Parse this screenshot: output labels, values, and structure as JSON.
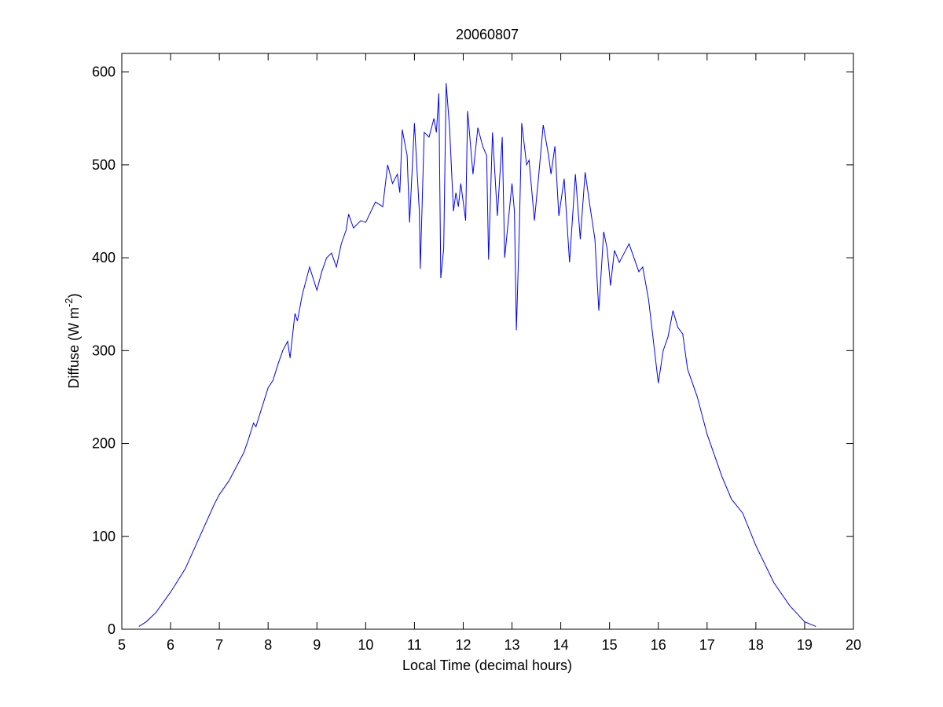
{
  "chart_data": {
    "type": "line",
    "title": "20060807",
    "xlabel": "Local Time (decimal hours)",
    "ylabel": {
      "text": "Diffuse (W m",
      "superscript": "-2",
      "suffix": ")"
    },
    "xlim": [
      5,
      20
    ],
    "xticks": [
      5,
      6,
      7,
      8,
      9,
      10,
      11,
      12,
      13,
      14,
      15,
      16,
      17,
      18,
      19,
      20
    ],
    "ylim": [
      0,
      620
    ],
    "yticks": [
      0,
      100,
      200,
      300,
      400,
      500,
      600
    ],
    "grid": false,
    "series": [
      {
        "name": "Diffuse",
        "color": "#0000ff",
        "x": [
          5.35,
          5.5,
          5.7,
          6.0,
          6.3,
          6.6,
          6.9,
          7.0,
          7.2,
          7.5,
          7.6,
          7.7,
          7.75,
          7.85,
          8.0,
          8.1,
          8.2,
          8.3,
          8.4,
          8.45,
          8.55,
          8.6,
          8.7,
          8.85,
          9.0,
          9.1,
          9.2,
          9.3,
          9.4,
          9.5,
          9.6,
          9.65,
          9.75,
          9.9,
          10.0,
          10.2,
          10.35,
          10.45,
          10.55,
          10.65,
          10.7,
          10.75,
          10.85,
          10.9,
          11.0,
          11.1,
          11.12,
          11.2,
          11.3,
          11.4,
          11.45,
          11.5,
          11.54,
          11.6,
          11.65,
          11.72,
          11.8,
          11.85,
          11.9,
          11.95,
          12.05,
          12.09,
          12.2,
          12.3,
          12.4,
          12.48,
          12.52,
          12.6,
          12.7,
          12.8,
          12.85,
          13.0,
          13.05,
          13.09,
          13.15,
          13.2,
          13.3,
          13.35,
          13.46,
          13.55,
          13.64,
          13.75,
          13.8,
          13.88,
          13.96,
          14.07,
          14.18,
          14.3,
          14.4,
          14.5,
          14.6,
          14.7,
          14.78,
          14.88,
          14.95,
          15.02,
          15.1,
          15.2,
          15.3,
          15.4,
          15.5,
          15.6,
          15.68,
          15.8,
          15.9,
          16.0,
          16.1,
          16.2,
          16.3,
          16.4,
          16.5,
          16.6,
          16.8,
          17.0,
          17.3,
          17.5,
          17.73,
          18.0,
          18.37,
          18.7,
          19.0,
          19.23
        ],
        "values": [
          3,
          8,
          18,
          40,
          65,
          100,
          135,
          145,
          160,
          190,
          205,
          222,
          218,
          235,
          260,
          268,
          285,
          300,
          310,
          292,
          340,
          332,
          360,
          390,
          365,
          385,
          400,
          405,
          390,
          415,
          430,
          447,
          432,
          440,
          438,
          460,
          455,
          500,
          480,
          490,
          470,
          538,
          510,
          438,
          545,
          450,
          388,
          535,
          530,
          550,
          535,
          577,
          378,
          410,
          588,
          540,
          450,
          470,
          455,
          480,
          440,
          558,
          490,
          540,
          520,
          510,
          398,
          535,
          445,
          530,
          400,
          480,
          450,
          322,
          430,
          545,
          500,
          505,
          440,
          490,
          543,
          510,
          490,
          520,
          445,
          485,
          395,
          490,
          420,
          492,
          455,
          420,
          343,
          428,
          410,
          370,
          408,
          395,
          405,
          415,
          400,
          385,
          390,
          355,
          310,
          265,
          300,
          315,
          343,
          325,
          318,
          280,
          250,
          210,
          165,
          140,
          125,
          90,
          50,
          25,
          8,
          3
        ]
      }
    ]
  }
}
